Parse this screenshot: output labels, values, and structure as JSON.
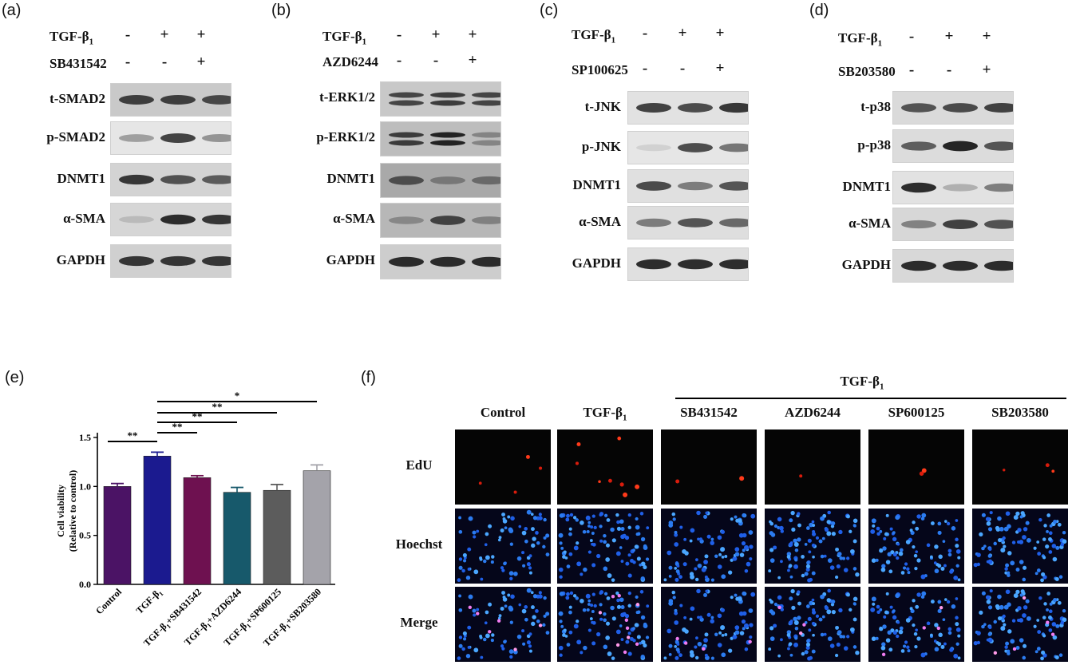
{
  "western": [
    {
      "panel_label": "(a)",
      "treatments": [
        {
          "name": "TGF-β",
          "subscript": "1",
          "signs": [
            "-",
            "+",
            "+"
          ]
        },
        {
          "name": "SB431542",
          "subscript": "",
          "signs": [
            "-",
            "-",
            "+"
          ]
        }
      ],
      "rows": [
        {
          "label": "t-SMAD2",
          "intensity": [
            0.8,
            0.8,
            0.75
          ],
          "bg": "#c9c9c9"
        },
        {
          "label": "p-SMAD2",
          "intensity": [
            0.35,
            0.8,
            0.4
          ],
          "bg": "#e6e6e6"
        },
        {
          "label": "DNMT1",
          "intensity": [
            0.85,
            0.7,
            0.65
          ],
          "bg": "#d3d3d3"
        },
        {
          "label": "α-SMA",
          "intensity": [
            0.15,
            0.9,
            0.85
          ],
          "bg": "#d6d6d6"
        },
        {
          "label": "GAPDH",
          "intensity": [
            0.85,
            0.85,
            0.85
          ],
          "bg": "#d0d0d0"
        }
      ]
    },
    {
      "panel_label": "(b)",
      "treatments": [
        {
          "name": "TGF-β",
          "subscript": "1",
          "signs": [
            "-",
            "+",
            "+"
          ]
        },
        {
          "name": "AZD6244",
          "subscript": "",
          "signs": [
            "-",
            "-",
            "+"
          ]
        }
      ],
      "rows": [
        {
          "label": "t-ERK1/2",
          "intensity": [
            0.75,
            0.8,
            0.75
          ],
          "bg": "#c8c8c8",
          "double": true
        },
        {
          "label": "p-ERK1/2",
          "intensity": [
            0.8,
            0.95,
            0.35
          ],
          "bg": "#bdbdbd",
          "double": true
        },
        {
          "label": "DNMT1",
          "intensity": [
            0.65,
            0.35,
            0.45
          ],
          "bg": "#a9a9a9"
        },
        {
          "label": "α-SMA",
          "intensity": [
            0.3,
            0.75,
            0.35
          ],
          "bg": "#b7b7b7"
        },
        {
          "label": "GAPDH",
          "intensity": [
            0.9,
            0.9,
            0.9
          ],
          "bg": "#cdcdcd"
        }
      ]
    },
    {
      "panel_label": "(c)",
      "treatments": [
        {
          "name": "TGF-β",
          "subscript": "1",
          "signs": [
            "-",
            "+",
            "+"
          ]
        },
        {
          "name": "SP100625",
          "subscript": "",
          "signs": [
            "-",
            "-",
            "+"
          ]
        }
      ],
      "rows": [
        {
          "label": "t-JNK",
          "intensity": [
            0.8,
            0.75,
            0.85
          ],
          "bg": "#e2e2e2"
        },
        {
          "label": "p-JNK",
          "intensity": [
            0.1,
            0.75,
            0.55
          ],
          "bg": "#e6e6e6"
        },
        {
          "label": "DNMT1",
          "intensity": [
            0.75,
            0.5,
            0.7
          ],
          "bg": "#e0e0e0"
        },
        {
          "label": "α-SMA",
          "intensity": [
            0.5,
            0.7,
            0.6
          ],
          "bg": "#dedede"
        },
        {
          "label": "GAPDH",
          "intensity": [
            0.9,
            0.9,
            0.9
          ],
          "bg": "#e0e0e0"
        }
      ]
    },
    {
      "panel_label": "(d)",
      "treatments": [
        {
          "name": "TGF-β",
          "subscript": "1",
          "signs": [
            "-",
            "+",
            "+"
          ]
        },
        {
          "name": "SB203580",
          "subscript": "",
          "signs": [
            "-",
            "-",
            "+"
          ]
        }
      ],
      "rows": [
        {
          "label": "t-p38",
          "intensity": [
            0.7,
            0.75,
            0.8
          ],
          "bg": "#dadada"
        },
        {
          "label": "p-p38",
          "intensity": [
            0.65,
            0.95,
            0.7
          ],
          "bg": "#dcdcdc"
        },
        {
          "label": "DNMT1",
          "intensity": [
            0.9,
            0.25,
            0.5
          ],
          "bg": "#e2e2e2"
        },
        {
          "label": "α-SMA",
          "intensity": [
            0.45,
            0.8,
            0.7
          ],
          "bg": "#d7d7d7"
        },
        {
          "label": "GAPDH",
          "intensity": [
            0.9,
            0.9,
            0.9
          ],
          "bg": "#d8d8d8"
        }
      ]
    }
  ],
  "panel_e_label": "(e)",
  "chart_data": {
    "type": "bar",
    "categories": [
      "Control",
      "TGF-β1",
      "TGF-β1+SB431542",
      "TGF-β1+AZD6244",
      "TGF-β1+SP600125",
      "TGF-β1+SB203580"
    ],
    "category_display": [
      {
        "main": "Control",
        "sub": "",
        "rest": ""
      },
      {
        "main": "TGF-β",
        "sub": "1",
        "rest": ""
      },
      {
        "main": "TGF-β",
        "sub": "1",
        "rest": "+SB431542"
      },
      {
        "main": "TGF-β",
        "sub": "1",
        "rest": "+AZD6244"
      },
      {
        "main": "TGF-β",
        "sub": "1",
        "rest": "+SP600125"
      },
      {
        "main": "TGF-β",
        "sub": "1",
        "rest": "+SB203580"
      }
    ],
    "values": [
      1.0,
      1.31,
      1.09,
      0.94,
      0.96,
      1.16
    ],
    "errors": [
      0.03,
      0.04,
      0.02,
      0.05,
      0.06,
      0.06
    ],
    "colors": [
      "#4b1365",
      "#1b1a8f",
      "#6e1150",
      "#17596b",
      "#5c5c5c",
      "#a4a3aa"
    ],
    "ylabel_line1": "Cell viability",
    "ylabel_line2": "(Relative to control)",
    "ylim": [
      0,
      1.5
    ],
    "yticks": [
      "0.0",
      "0.5",
      "1.0",
      "1.5"
    ],
    "ytick_values": [
      0,
      0.5,
      1.0,
      1.5
    ],
    "significance": [
      {
        "from": 0,
        "to": 1,
        "label": "**"
      },
      {
        "from": 1,
        "to": 2,
        "label": "**"
      },
      {
        "from": 1,
        "to": 3,
        "label": "**"
      },
      {
        "from": 1,
        "to": 4,
        "label": "**"
      },
      {
        "from": 1,
        "to": 5,
        "label": "*"
      }
    ]
  },
  "panel_f": {
    "panel_label": "(f)",
    "group_label": {
      "main": "TGF-β",
      "sub": "1"
    },
    "columns": [
      {
        "main": "Control",
        "sub": ""
      },
      {
        "main": "TGF-β",
        "sub": "1"
      },
      {
        "main": "SB431542",
        "sub": ""
      },
      {
        "main": "AZD6244",
        "sub": ""
      },
      {
        "main": "SP600125",
        "sub": ""
      },
      {
        "main": "SB203580",
        "sub": ""
      }
    ],
    "rows": [
      "EdU",
      "Hoechst",
      "Merge"
    ],
    "edu_counts": [
      4,
      8,
      2,
      1,
      2,
      3
    ],
    "nuclei_counts": [
      75,
      95,
      90,
      100,
      85,
      95
    ]
  }
}
